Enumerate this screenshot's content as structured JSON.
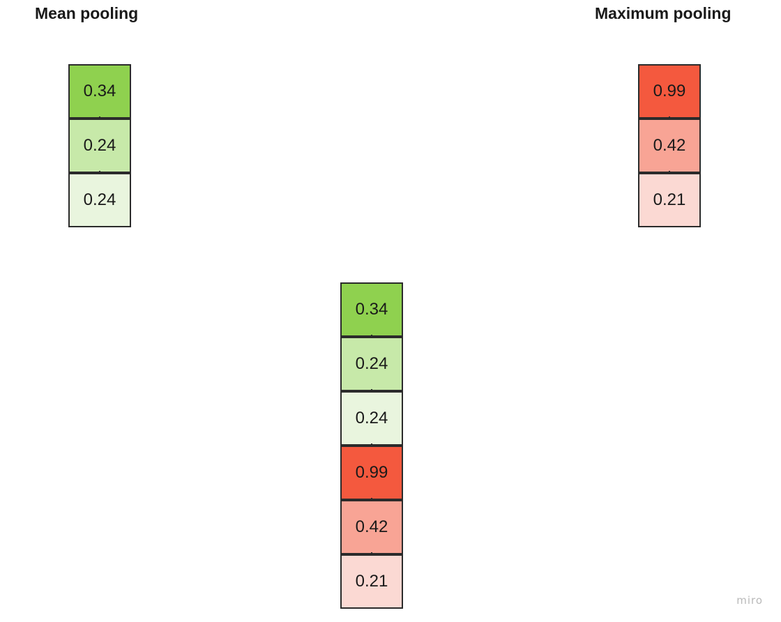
{
  "labels": {
    "mean": "Mean pooling",
    "max": "Maximum pooling"
  },
  "stacks": {
    "mean": [
      {
        "value": "0.34",
        "color": "#8fd14f"
      },
      {
        "value": "0.24",
        "color": "#c7e9a9"
      },
      {
        "value": "0.24",
        "color": "#e9f5de"
      }
    ],
    "max": [
      {
        "value": "0.99",
        "color": "#f4593e"
      },
      {
        "value": "0.42",
        "color": "#f8a495"
      },
      {
        "value": "0.21",
        "color": "#fbd9d3"
      }
    ],
    "concat": [
      {
        "value": "0.34",
        "color": "#8fd14f"
      },
      {
        "value": "0.24",
        "color": "#c7e9a9"
      },
      {
        "value": "0.24",
        "color": "#e9f5de"
      },
      {
        "value": "0.99",
        "color": "#f4593e"
      },
      {
        "value": "0.42",
        "color": "#f8a495"
      },
      {
        "value": "0.21",
        "color": "#fbd9d3"
      }
    ]
  },
  "watermark": "miro"
}
